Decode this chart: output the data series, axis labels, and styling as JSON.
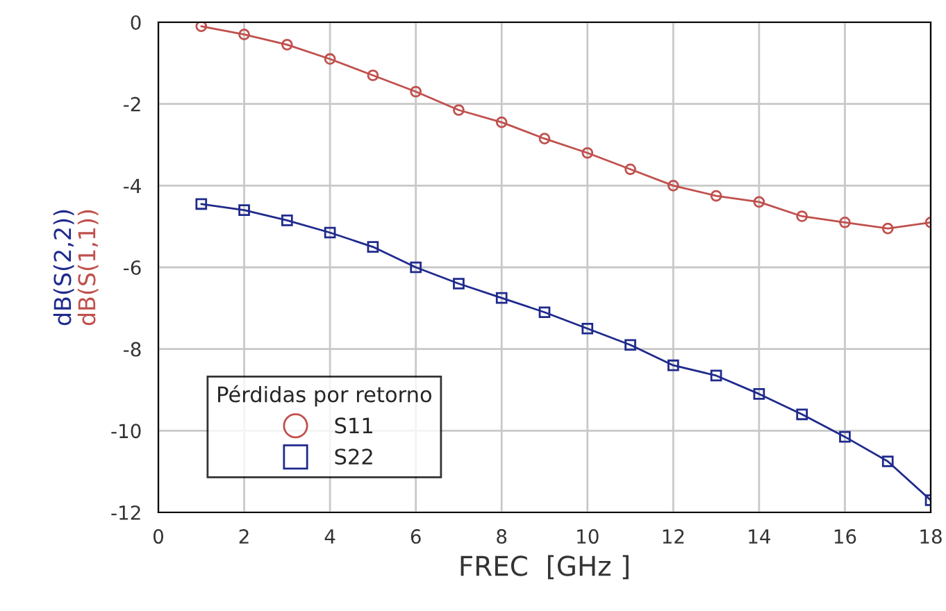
{
  "chart_data": {
    "type": "line",
    "xlabel": "FREC  [GHz ]",
    "ylabel": "dB(S(2,2))",
    "annotations": [
      "dB(S(1,1))"
    ],
    "legend_title": "Pérdidas por retorno",
    "legend": "bottom left",
    "grid": true,
    "x": [
      1,
      2,
      3,
      4,
      5,
      6,
      7,
      8,
      9,
      10,
      11,
      12,
      13,
      14,
      15,
      16,
      17,
      18
    ],
    "xlim": [
      0,
      18
    ],
    "xticks": [
      0,
      2,
      4,
      6,
      8,
      10,
      12,
      14,
      16,
      18
    ],
    "ylim": [
      -12,
      0
    ],
    "yticks": [
      -12,
      -10,
      -8,
      -6,
      -4,
      -2,
      0
    ],
    "series": [
      {
        "name": "S11",
        "color": "#c0504d",
        "marker": "circle",
        "values": [
          -0.1,
          -0.3,
          -0.55,
          -0.9,
          -1.3,
          -1.7,
          -2.15,
          -2.45,
          -2.85,
          -3.2,
          -3.6,
          -4.0,
          -4.25,
          -4.4,
          -4.75,
          -4.9,
          -5.05,
          -4.9
        ]
      },
      {
        "name": "S22",
        "color": "#1f2a8c",
        "marker": "square",
        "values": [
          -4.45,
          -4.6,
          -4.85,
          -5.15,
          -5.5,
          -6.0,
          -6.4,
          -6.75,
          -7.1,
          -7.5,
          -7.9,
          -8.4,
          -8.65,
          -9.1,
          -9.6,
          -10.15,
          -10.75,
          -11.7
        ]
      }
    ]
  }
}
